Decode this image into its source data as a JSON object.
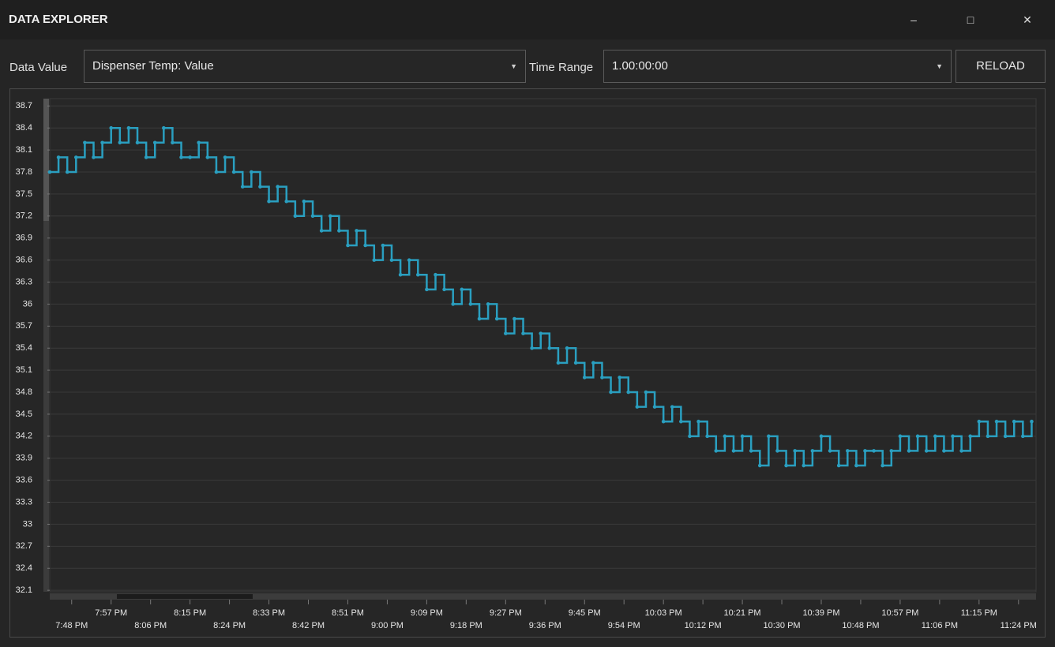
{
  "window": {
    "title": "DATA EXPLORER"
  },
  "controls": {
    "data_value_label": "Data Value",
    "data_value": "Dispenser Temp: Value",
    "time_range_label": "Time Range",
    "time_range": "1.00:00:00",
    "reload": "RELOAD"
  },
  "chart_data": {
    "type": "line",
    "step": true,
    "markers": true,
    "grid": true,
    "x": [
      1183,
      1185,
      1187,
      1189,
      1191,
      1193,
      1195,
      1197,
      1199,
      1201,
      1203,
      1205,
      1207,
      1209,
      1211,
      1213,
      1215,
      1217,
      1219,
      1221,
      1223,
      1225,
      1227,
      1229,
      1231,
      1233,
      1235,
      1237,
      1239,
      1241,
      1243,
      1245,
      1247,
      1249,
      1251,
      1253,
      1255,
      1257,
      1259,
      1261,
      1263,
      1265,
      1267,
      1269,
      1271,
      1273,
      1275,
      1277,
      1279,
      1281,
      1283,
      1285,
      1287,
      1289,
      1291,
      1293,
      1295,
      1297,
      1299,
      1301,
      1303,
      1305,
      1307,
      1309,
      1311,
      1313,
      1315,
      1317,
      1319,
      1321,
      1323,
      1325,
      1327,
      1329,
      1331,
      1333,
      1335,
      1337,
      1339,
      1341,
      1343,
      1345,
      1347,
      1349,
      1351,
      1353,
      1355,
      1357,
      1359,
      1361,
      1363,
      1365,
      1367,
      1369,
      1371,
      1373,
      1375,
      1377,
      1379,
      1381,
      1383,
      1385,
      1387,
      1389,
      1391,
      1393,
      1395,
      1397,
      1399,
      1401,
      1403,
      1405,
      1407
    ],
    "series": [
      {
        "name": "Dispenser Temp: Value",
        "color": "#2a9fc0",
        "values": [
          37.8,
          38.0,
          37.8,
          38.0,
          38.2,
          38.0,
          38.2,
          38.4,
          38.2,
          38.4,
          38.2,
          38.0,
          38.2,
          38.4,
          38.2,
          38.0,
          38.0,
          38.2,
          38.0,
          37.8,
          38.0,
          37.8,
          37.6,
          37.8,
          37.6,
          37.4,
          37.6,
          37.4,
          37.2,
          37.4,
          37.2,
          37.0,
          37.2,
          37.0,
          36.8,
          37.0,
          36.8,
          36.6,
          36.8,
          36.6,
          36.4,
          36.6,
          36.4,
          36.2,
          36.4,
          36.2,
          36.0,
          36.2,
          36.0,
          35.8,
          36.0,
          35.8,
          35.6,
          35.8,
          35.6,
          35.4,
          35.6,
          35.4,
          35.2,
          35.4,
          35.2,
          35.0,
          35.2,
          35.0,
          34.8,
          35.0,
          34.8,
          34.6,
          34.8,
          34.6,
          34.4,
          34.6,
          34.4,
          34.2,
          34.4,
          34.2,
          34.0,
          34.2,
          34.0,
          34.2,
          34.0,
          33.8,
          34.2,
          34.0,
          33.8,
          34.0,
          33.8,
          34.0,
          34.2,
          34.0,
          33.8,
          34.0,
          33.8,
          34.0,
          34.0,
          33.8,
          34.0,
          34.2,
          34.0,
          34.2,
          34.0,
          34.2,
          34.0,
          34.2,
          34.0,
          34.2,
          34.4,
          34.2,
          34.4,
          34.2,
          34.4,
          34.2,
          34.4
        ]
      }
    ],
    "xlim": [
      1183,
      1408
    ],
    "xticks": [
      {
        "value": 1188,
        "label": "7:48 PM"
      },
      {
        "value": 1197,
        "label": "7:57 PM"
      },
      {
        "value": 1206,
        "label": "8:06 PM"
      },
      {
        "value": 1215,
        "label": "8:15 PM"
      },
      {
        "value": 1224,
        "label": "8:24 PM"
      },
      {
        "value": 1233,
        "label": "8:33 PM"
      },
      {
        "value": 1242,
        "label": "8:42 PM"
      },
      {
        "value": 1251,
        "label": "8:51 PM"
      },
      {
        "value": 1260,
        "label": "9:00 PM"
      },
      {
        "value": 1269,
        "label": "9:09 PM"
      },
      {
        "value": 1278,
        "label": "9:18 PM"
      },
      {
        "value": 1287,
        "label": "9:27 PM"
      },
      {
        "value": 1296,
        "label": "9:36 PM"
      },
      {
        "value": 1305,
        "label": "9:45 PM"
      },
      {
        "value": 1314,
        "label": "9:54 PM"
      },
      {
        "value": 1323,
        "label": "10:03 PM"
      },
      {
        "value": 1332,
        "label": "10:12 PM"
      },
      {
        "value": 1341,
        "label": "10:21 PM"
      },
      {
        "value": 1350,
        "label": "10:30 PM"
      },
      {
        "value": 1359,
        "label": "10:39 PM"
      },
      {
        "value": 1368,
        "label": "10:48 PM"
      },
      {
        "value": 1377,
        "label": "10:57 PM"
      },
      {
        "value": 1386,
        "label": "11:06 PM"
      },
      {
        "value": 1395,
        "label": "11:15 PM"
      },
      {
        "value": 1404,
        "label": "11:24 PM"
      }
    ],
    "ylim": [
      32.08,
      38.8
    ],
    "yticks": [
      38.7,
      38.4,
      38.1,
      37.8,
      37.5,
      37.2,
      36.9,
      36.6,
      36.3,
      36,
      35.7,
      35.4,
      35.1,
      34.8,
      34.5,
      34.2,
      33.9,
      33.6,
      33.3,
      33,
      32.7,
      32.4,
      32.1
    ]
  }
}
